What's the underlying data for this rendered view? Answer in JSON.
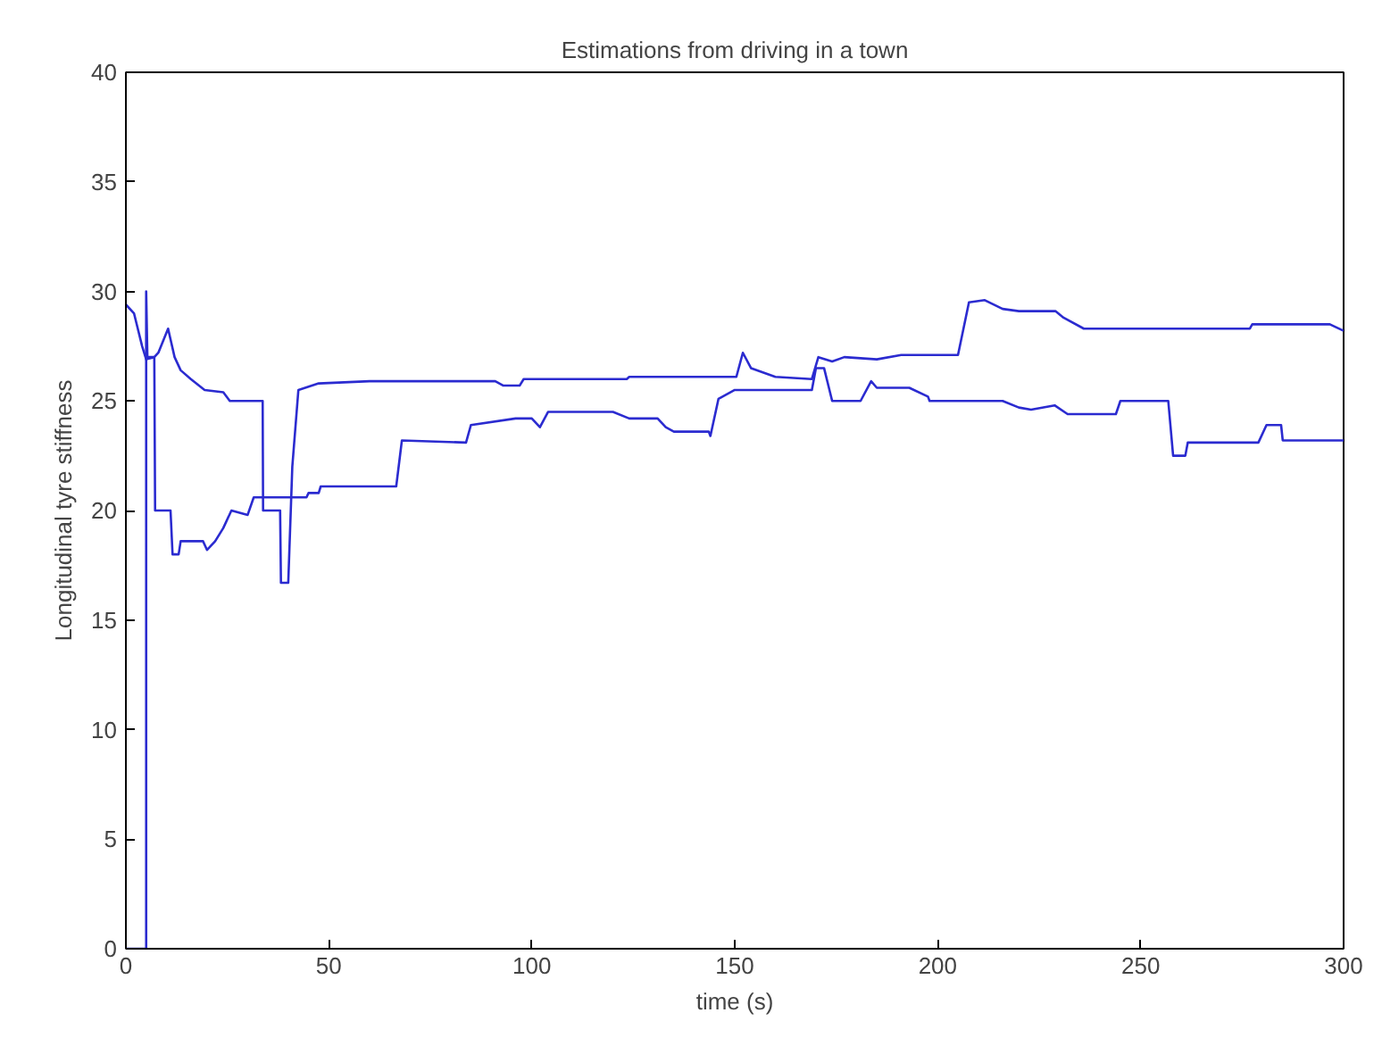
{
  "chart_data": {
    "type": "line",
    "title": "Estimations from driving in a town",
    "xlabel": "time (s)",
    "ylabel": "Longitudinal tyre stiffness",
    "xlim": [
      0,
      300
    ],
    "ylim": [
      0,
      40
    ],
    "xticks": [
      0,
      50,
      100,
      150,
      200,
      250,
      300
    ],
    "yticks": [
      0,
      5,
      10,
      15,
      20,
      25,
      30,
      35,
      40
    ],
    "grid": false,
    "series": [
      {
        "color": "#2b2bd0",
        "x": [
          0,
          5,
          5,
          5.3,
          7,
          7.2,
          11,
          11.5,
          13,
          13.5,
          19,
          20,
          22,
          24,
          26,
          30,
          31.5,
          44.5,
          45,
          47.5,
          48,
          66.6,
          68,
          83.8,
          85,
          96,
          100,
          102,
          104,
          120,
          124,
          131,
          133,
          135,
          143.6,
          144,
          146,
          150,
          169,
          170,
          172,
          174,
          181,
          183.6,
          185,
          193,
          197.6,
          198,
          216,
          220,
          223,
          228.8,
          232,
          243.9,
          245,
          256.8,
          258,
          261,
          261.6,
          279,
          281,
          284.6,
          285,
          300
        ],
        "values": [
          0,
          0,
          30,
          27,
          27,
          20,
          20,
          18,
          18,
          18.6,
          18.6,
          18.2,
          18.6,
          19.2,
          20,
          19.8,
          20.6,
          20.6,
          20.8,
          20.8,
          21.1,
          21.1,
          23.2,
          23.1,
          23.9,
          24.2,
          24.2,
          23.8,
          24.5,
          24.5,
          24.2,
          24.2,
          23.8,
          23.6,
          23.6,
          23.4,
          25.1,
          25.5,
          25.5,
          26.5,
          26.5,
          25,
          25,
          25.9,
          25.6,
          25.6,
          25.2,
          25,
          25,
          24.7,
          24.6,
          24.8,
          24.4,
          24.4,
          25,
          25,
          22.5,
          22.5,
          23.1,
          23.1,
          23.9,
          23.9,
          23.2,
          23.2
        ]
      },
      {
        "color": "#2b2bd0",
        "x": [
          0,
          2,
          4,
          5,
          7,
          8,
          10.4,
          12,
          13.5,
          16,
          19.4,
          24,
          25.6,
          33.7,
          33.8,
          38,
          38.2,
          40,
          41,
          42.5,
          47.5,
          60,
          91,
          93,
          97,
          98,
          123.4,
          124,
          150.4,
          152,
          154,
          160,
          169,
          170.6,
          174,
          177,
          185,
          191,
          205,
          207.7,
          211.6,
          216,
          220,
          229,
          231,
          236,
          276.9,
          277.5,
          296.6,
          300
        ],
        "values": [
          29.4,
          29,
          27.5,
          26.9,
          27,
          27.2,
          28.3,
          27,
          26.4,
          26,
          25.5,
          25.4,
          25,
          25,
          20,
          20,
          16.7,
          16.7,
          22,
          25.5,
          25.8,
          25.9,
          25.9,
          25.7,
          25.7,
          26,
          26,
          26.1,
          26.1,
          27.2,
          26.5,
          26.1,
          26,
          27,
          26.8,
          27,
          26.9,
          27.1,
          27.1,
          29.5,
          29.6,
          29.2,
          29.1,
          29.1,
          28.8,
          28.3,
          28.3,
          28.5,
          28.5,
          28.2
        ]
      }
    ]
  }
}
